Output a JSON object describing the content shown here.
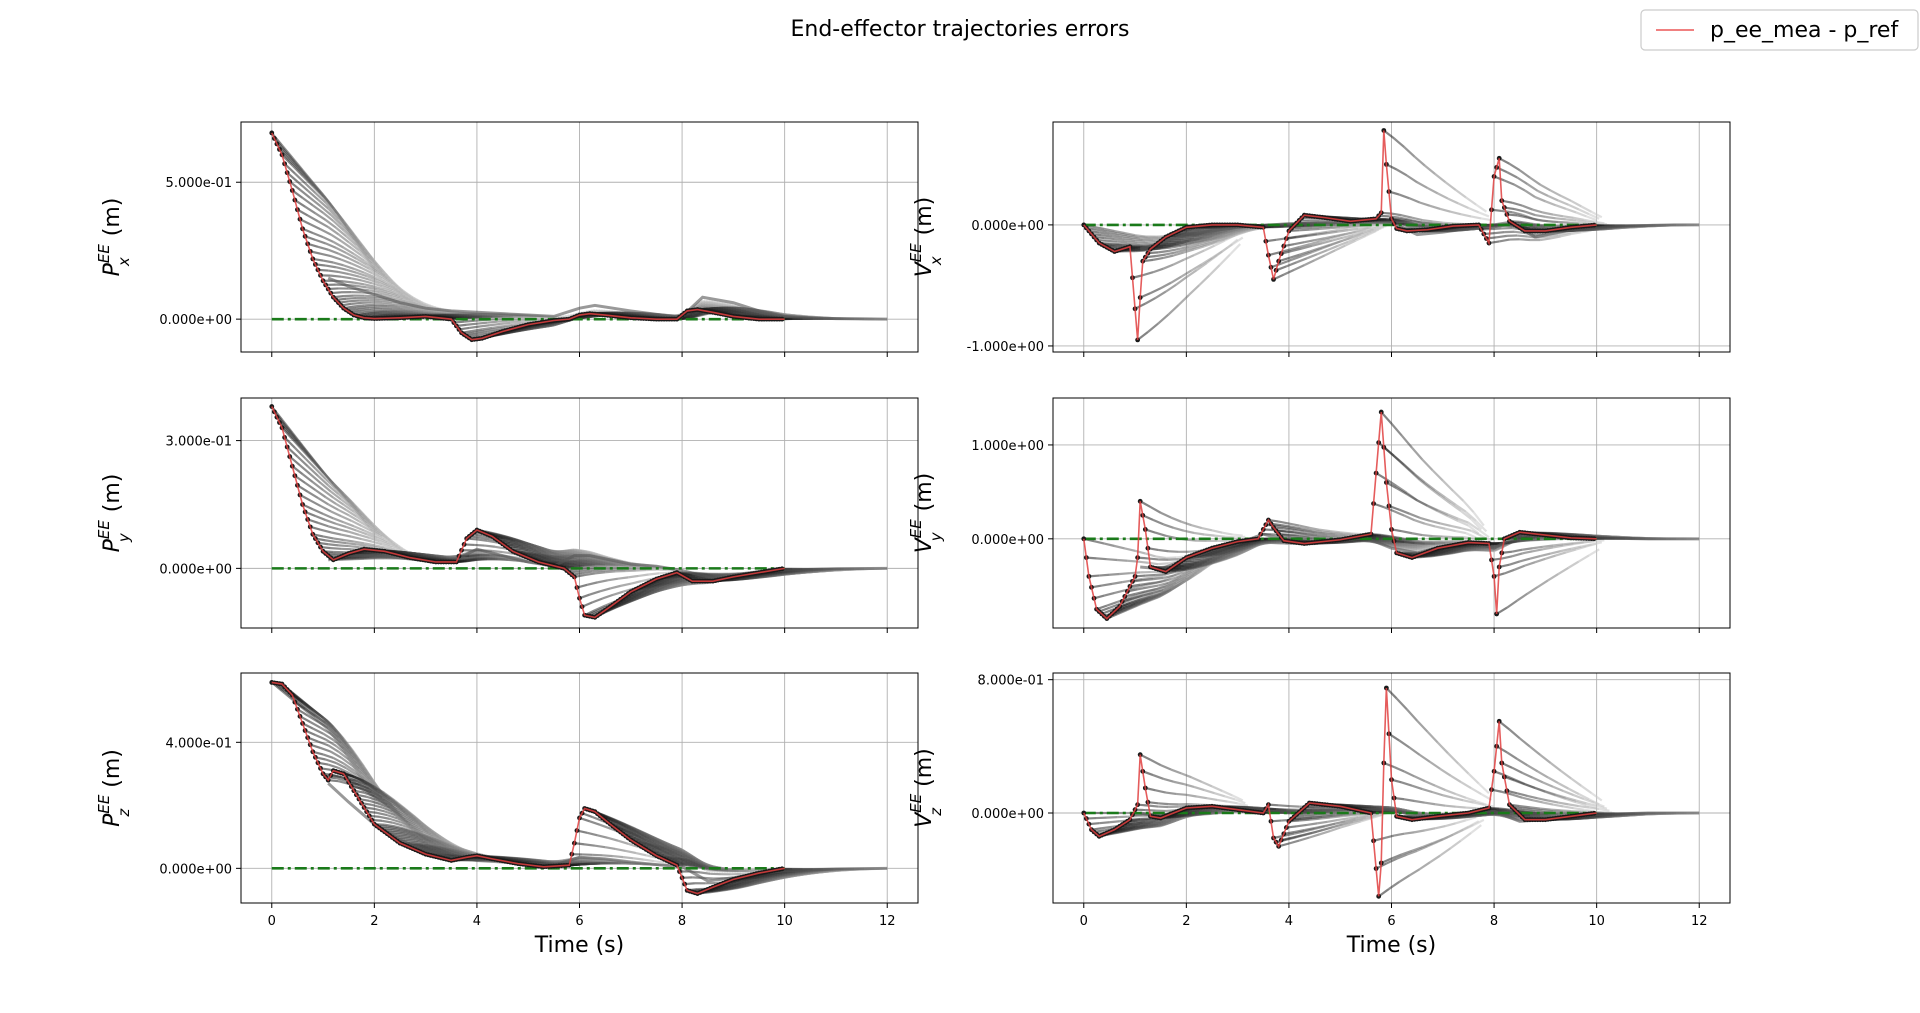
{
  "title": "End-effector trajectories errors",
  "legend": {
    "label": "p_ee_mea - p_ref",
    "color": "#f08080",
    "placement": "top-right"
  },
  "colors": {
    "measured": "#e04040",
    "prediction_dark": "#1a1a1a",
    "prediction_light": "#d0d0d0",
    "reference": "#1a7a1a",
    "grid": "#b0b0b0"
  },
  "chart_data": [
    {
      "type": "line",
      "panel": "P_x",
      "ylabel": {
        "base": "P",
        "sub": "x",
        "sup": "EE",
        "unit": " (m)"
      },
      "xlabel": "",
      "xlim": [
        -0.6,
        12.6
      ],
      "ylim": [
        -0.12,
        0.72
      ],
      "yticks": [
        0.0,
        0.5
      ],
      "ytick_labels": [
        "0.000e+00",
        "5.000e-01"
      ],
      "xticks": [
        0,
        2,
        4,
        6,
        8,
        10,
        12
      ],
      "xtick_labels": [
        "",
        "",
        "",
        "",
        "",
        "",
        ""
      ],
      "grid": true,
      "series": [
        {
          "name": "p_ee_mea - p_ref",
          "x": [
            0,
            0.2,
            0.4,
            0.6,
            0.8,
            1.0,
            1.2,
            1.4,
            1.6,
            1.8,
            2.0,
            2.5,
            3.0,
            3.5,
            3.7,
            3.9,
            4.1,
            4.5,
            5.0,
            5.5,
            5.8,
            6.0,
            6.2,
            6.5,
            7.0,
            7.5,
            7.9,
            8.1,
            8.3,
            8.6,
            9.0,
            9.5,
            10.0
          ],
          "y": [
            0.68,
            0.6,
            0.47,
            0.33,
            0.22,
            0.14,
            0.08,
            0.04,
            0.015,
            0.005,
            0.002,
            0.005,
            0.01,
            0.0,
            -0.05,
            -0.075,
            -0.07,
            -0.045,
            -0.02,
            -0.005,
            0.0,
            0.015,
            0.02,
            0.015,
            0.005,
            0.0,
            0.0,
            0.03,
            0.035,
            0.025,
            0.01,
            0.0,
            0.0
          ]
        },
        {
          "name": "",
          "x": [
            1.1,
            1.5,
            2.0,
            2.5,
            3.0,
            3.5,
            4.0,
            4.5,
            5.0,
            5.5,
            6.0,
            6.3,
            7.0,
            7.8,
            8.0,
            8.4,
            9.0,
            9.5,
            10.0,
            10.5,
            11.0,
            11.5,
            12.0
          ],
          "y": [
            0.15,
            0.12,
            0.09,
            0.06,
            0.04,
            0.03,
            0.025,
            0.02,
            0.015,
            0.01,
            0.04,
            0.05,
            0.03,
            0.01,
            0.01,
            0.08,
            0.06,
            0.03,
            0.01,
            0.005,
            0.002,
            0.001,
            0.0
          ]
        },
        {
          "name": "",
          "x": [
            0,
            12
          ],
          "y": [
            0,
            0
          ]
        }
      ]
    },
    {
      "type": "line",
      "panel": "V_x",
      "ylabel": {
        "base": "V",
        "sub": "x",
        "sup": "EE",
        "unit": " (m)"
      },
      "xlabel": "",
      "xlim": [
        -0.6,
        12.6
      ],
      "ylim": [
        -1.05,
        0.85
      ],
      "yticks": [
        -1.0,
        0.0
      ],
      "ytick_labels": [
        "-1.000e+00",
        "0.000e+00"
      ],
      "xticks": [
        0,
        2,
        4,
        6,
        8,
        10,
        12
      ],
      "xtick_labels": [
        "",
        "",
        "",
        "",
        "",
        "",
        ""
      ],
      "grid": true,
      "series": [
        {
          "name": "p_ee_mea - p_ref",
          "x": [
            0,
            0.3,
            0.6,
            0.9,
            1.05,
            1.1,
            1.15,
            1.3,
            1.6,
            2.0,
            2.5,
            3.0,
            3.5,
            3.6,
            3.7,
            3.8,
            4.0,
            4.3,
            4.7,
            5.2,
            5.7,
            5.8,
            5.85,
            5.9,
            6.0,
            6.1,
            6.3,
            6.7,
            7.2,
            7.7,
            7.9,
            8.0,
            8.1,
            8.15,
            8.3,
            8.6,
            9.0,
            9.5,
            10.0
          ],
          "y": [
            0.0,
            -0.15,
            -0.22,
            -0.18,
            -0.95,
            -0.6,
            -0.3,
            -0.2,
            -0.1,
            -0.02,
            0.0,
            0.0,
            -0.02,
            -0.25,
            -0.45,
            -0.3,
            -0.05,
            0.08,
            0.06,
            0.03,
            0.05,
            0.1,
            0.78,
            0.5,
            0.05,
            -0.03,
            -0.05,
            -0.04,
            -0.01,
            0.0,
            -0.15,
            0.4,
            0.55,
            0.2,
            0.03,
            -0.05,
            -0.05,
            -0.02,
            0.0
          ]
        },
        {
          "name": "",
          "x": [
            1.1,
            1.5,
            2.0,
            3.0,
            4.0,
            5.0,
            6.0,
            6.5,
            7.0,
            8.0,
            8.3,
            8.8,
            9.5,
            10.5,
            11.5,
            12.0
          ],
          "y": [
            -0.2,
            -0.15,
            -0.08,
            -0.02,
            0.01,
            0.02,
            0.02,
            -0.08,
            -0.06,
            0.0,
            0.02,
            -0.1,
            -0.04,
            -0.01,
            0.0,
            0.0
          ]
        },
        {
          "name": "",
          "x": [
            0,
            12
          ],
          "y": [
            0,
            0
          ]
        }
      ]
    },
    {
      "type": "line",
      "panel": "P_y",
      "ylabel": {
        "base": "P",
        "sub": "y",
        "sup": "EE",
        "unit": " (m)"
      },
      "xlabel": "",
      "xlim": [
        -0.6,
        12.6
      ],
      "ylim": [
        -0.14,
        0.4
      ],
      "yticks": [
        0.0,
        0.3
      ],
      "ytick_labels": [
        "0.000e+00",
        "3.000e-01"
      ],
      "xticks": [
        0,
        2,
        4,
        6,
        8,
        10,
        12
      ],
      "xtick_labels": [
        "",
        "",
        "",
        "",
        "",
        "",
        ""
      ],
      "grid": true,
      "series": [
        {
          "name": "p_ee_mea - p_ref",
          "x": [
            0,
            0.2,
            0.4,
            0.6,
            0.8,
            1.0,
            1.2,
            1.5,
            1.8,
            2.2,
            2.7,
            3.2,
            3.6,
            3.8,
            4.0,
            4.3,
            4.7,
            5.2,
            5.7,
            5.9,
            6.0,
            6.1,
            6.3,
            6.6,
            7.0,
            7.5,
            7.9,
            8.2,
            8.6,
            9.0,
            9.5,
            10.0
          ],
          "y": [
            0.38,
            0.33,
            0.24,
            0.15,
            0.08,
            0.04,
            0.02,
            0.035,
            0.045,
            0.04,
            0.025,
            0.015,
            0.015,
            0.07,
            0.09,
            0.075,
            0.04,
            0.015,
            0.0,
            -0.02,
            -0.07,
            -0.11,
            -0.115,
            -0.09,
            -0.055,
            -0.025,
            -0.01,
            -0.03,
            -0.03,
            -0.02,
            -0.01,
            0.0
          ]
        },
        {
          "name": "",
          "x": [
            1.1,
            1.5,
            2.0,
            2.5,
            3.0,
            3.5,
            4.0,
            4.5,
            5.0,
            5.5,
            5.9,
            6.2,
            6.6,
            7.0,
            7.5,
            8.0,
            8.5,
            9.0,
            9.5,
            10.0,
            11.0,
            12.0
          ],
          "y": [
            0.02,
            0.03,
            0.03,
            0.025,
            0.018,
            0.015,
            0.045,
            0.03,
            0.015,
            0.005,
            0.03,
            0.03,
            0.02,
            0.01,
            0.005,
            -0.005,
            -0.02,
            -0.015,
            -0.008,
            -0.004,
            -0.001,
            0.0
          ]
        },
        {
          "name": "",
          "x": [
            0,
            12
          ],
          "y": [
            0,
            0
          ]
        }
      ]
    },
    {
      "type": "line",
      "panel": "V_y",
      "ylabel": {
        "base": "V",
        "sub": "y",
        "sup": "EE",
        "unit": " (m)"
      },
      "xlabel": "",
      "xlim": [
        -0.6,
        12.6
      ],
      "ylim": [
        -0.95,
        1.5
      ],
      "yticks": [
        0.0,
        1.0
      ],
      "ytick_labels": [
        "0.000e+00",
        "1.000e+00"
      ],
      "xticks": [
        0,
        2,
        4,
        6,
        8,
        10,
        12
      ],
      "xtick_labels": [
        "",
        "",
        "",
        "",
        "",
        "",
        ""
      ],
      "grid": true,
      "series": [
        {
          "name": "p_ee_mea - p_ref",
          "x": [
            0,
            0.1,
            0.25,
            0.45,
            0.7,
            1.0,
            1.05,
            1.1,
            1.2,
            1.3,
            1.6,
            2.0,
            2.5,
            3.0,
            3.4,
            3.6,
            3.7,
            3.9,
            4.3,
            5.0,
            5.6,
            5.8,
            5.9,
            6.0,
            6.1,
            6.4,
            6.9,
            7.5,
            7.9,
            8.0,
            8.05,
            8.1,
            8.2,
            8.5,
            9.0,
            9.5,
            10.0
          ],
          "y": [
            0.0,
            -0.4,
            -0.75,
            -0.85,
            -0.72,
            -0.4,
            -0.2,
            0.4,
            0.1,
            -0.3,
            -0.35,
            -0.2,
            -0.1,
            -0.03,
            0.0,
            0.2,
            0.12,
            -0.02,
            -0.05,
            -0.01,
            0.05,
            1.35,
            0.6,
            0.1,
            -0.15,
            -0.2,
            -0.1,
            -0.04,
            -0.05,
            -0.4,
            -0.8,
            -0.3,
            0.0,
            0.07,
            0.04,
            0.01,
            0.0
          ]
        },
        {
          "name": "",
          "x": [
            1.1,
            1.5,
            2.0,
            2.5,
            3.0,
            3.5,
            4.0,
            4.5,
            5.0,
            5.5,
            6.0,
            6.5,
            7.0,
            7.5,
            8.0,
            8.5,
            9.0,
            10.0,
            11.0,
            12.0
          ],
          "y": [
            -0.3,
            -0.32,
            -0.22,
            -0.12,
            -0.05,
            0.05,
            -0.02,
            -0.05,
            -0.02,
            0.01,
            -0.1,
            -0.15,
            -0.08,
            -0.03,
            -0.1,
            0.05,
            0.04,
            0.01,
            0.0,
            0.0
          ]
        },
        {
          "name": "",
          "x": [
            0,
            12
          ],
          "y": [
            0,
            0
          ]
        }
      ]
    },
    {
      "type": "line",
      "panel": "P_z",
      "ylabel": {
        "base": "P",
        "sub": "z",
        "sup": "EE",
        "unit": " (m)"
      },
      "xlabel": "Time (s)",
      "xlim": [
        -0.6,
        12.6
      ],
      "ylim": [
        -0.11,
        0.62
      ],
      "yticks": [
        0.0,
        0.4
      ],
      "ytick_labels": [
        "0.000e+00",
        "4.000e-01"
      ],
      "xticks": [
        0,
        2,
        4,
        6,
        8,
        10,
        12
      ],
      "xtick_labels": [
        "0",
        "2",
        "4",
        "6",
        "8",
        "10",
        "12"
      ],
      "grid": true,
      "series": [
        {
          "name": "p_ee_mea - p_ref",
          "x": [
            0,
            0.2,
            0.4,
            0.6,
            0.8,
            1.0,
            1.1,
            1.2,
            1.4,
            1.7,
            2.0,
            2.5,
            3.0,
            3.5,
            3.8,
            4.0,
            4.3,
            4.8,
            5.3,
            5.8,
            5.9,
            6.0,
            6.1,
            6.3,
            6.6,
            7.0,
            7.5,
            7.9,
            8.0,
            8.1,
            8.3,
            8.6,
            9.0,
            9.5,
            10.0
          ],
          "y": [
            0.59,
            0.585,
            0.55,
            0.46,
            0.37,
            0.3,
            0.28,
            0.31,
            0.3,
            0.22,
            0.14,
            0.08,
            0.045,
            0.025,
            0.035,
            0.04,
            0.03,
            0.015,
            0.005,
            0.01,
            0.08,
            0.16,
            0.19,
            0.18,
            0.14,
            0.09,
            0.04,
            0.01,
            -0.03,
            -0.07,
            -0.08,
            -0.06,
            -0.035,
            -0.015,
            0.0
          ]
        },
        {
          "name": "",
          "x": [
            1.1,
            1.5,
            2.0,
            2.5,
            3.0,
            3.5,
            4.0,
            4.5,
            5.0,
            5.5,
            6.0,
            6.5,
            7.0,
            7.5,
            8.0,
            8.5,
            9.0,
            9.5,
            10.0,
            11.0,
            12.0
          ],
          "y": [
            0.27,
            0.21,
            0.14,
            0.09,
            0.055,
            0.035,
            0.025,
            0.02,
            0.015,
            0.01,
            0.035,
            0.03,
            0.02,
            0.012,
            0.005,
            -0.04,
            -0.03,
            -0.015,
            -0.008,
            -0.002,
            0.0
          ]
        },
        {
          "name": "",
          "x": [
            0,
            12
          ],
          "y": [
            0,
            0
          ]
        }
      ]
    },
    {
      "type": "line",
      "panel": "V_z",
      "ylabel": {
        "base": "V",
        "sub": "z",
        "sup": "EE",
        "unit": " (m)"
      },
      "xlabel": "Time (s)",
      "xlim": [
        -0.6,
        12.6
      ],
      "ylim": [
        -0.54,
        0.84
      ],
      "yticks": [
        0.0,
        0.8
      ],
      "ytick_labels": [
        "0.000e+00",
        "8.000e-01"
      ],
      "xticks": [
        0,
        2,
        4,
        6,
        8,
        10,
        12
      ],
      "xtick_labels": [
        "0",
        "2",
        "4",
        "6",
        "8",
        "10",
        "12"
      ],
      "grid": true,
      "series": [
        {
          "name": "p_ee_mea - p_ref",
          "x": [
            0,
            0.15,
            0.3,
            0.6,
            0.9,
            1.05,
            1.1,
            1.2,
            1.3,
            1.5,
            2.0,
            2.5,
            3.0,
            3.5,
            3.6,
            3.7,
            3.8,
            4.0,
            4.4,
            5.0,
            5.6,
            5.75,
            5.8,
            5.85,
            5.9,
            6.0,
            6.1,
            6.4,
            6.9,
            7.5,
            7.9,
            8.0,
            8.1,
            8.15,
            8.3,
            8.6,
            9.0,
            9.5,
            10.0
          ],
          "y": [
            0.0,
            -0.1,
            -0.14,
            -0.1,
            -0.04,
            0.05,
            0.35,
            0.15,
            -0.02,
            -0.03,
            0.03,
            0.04,
            0.02,
            0.0,
            0.05,
            -0.15,
            -0.2,
            -0.05,
            0.06,
            0.04,
            0.0,
            -0.5,
            -0.3,
            0.3,
            0.75,
            0.2,
            -0.02,
            -0.04,
            -0.02,
            0.0,
            0.03,
            0.25,
            0.55,
            0.3,
            0.05,
            -0.04,
            -0.04,
            -0.02,
            0.0
          ]
        },
        {
          "name": "",
          "x": [
            1.1,
            1.5,
            2.0,
            3.0,
            4.0,
            5.0,
            6.0,
            6.5,
            7.0,
            8.0,
            8.5,
            9.0,
            10.0,
            11.0,
            12.0
          ],
          "y": [
            0.0,
            -0.02,
            0.03,
            0.03,
            0.0,
            0.02,
            0.02,
            -0.02,
            -0.02,
            0.01,
            -0.05,
            -0.04,
            -0.01,
            0.0,
            0.0
          ]
        },
        {
          "name": "",
          "x": [
            0,
            12
          ],
          "y": [
            0,
            0
          ]
        }
      ]
    }
  ]
}
